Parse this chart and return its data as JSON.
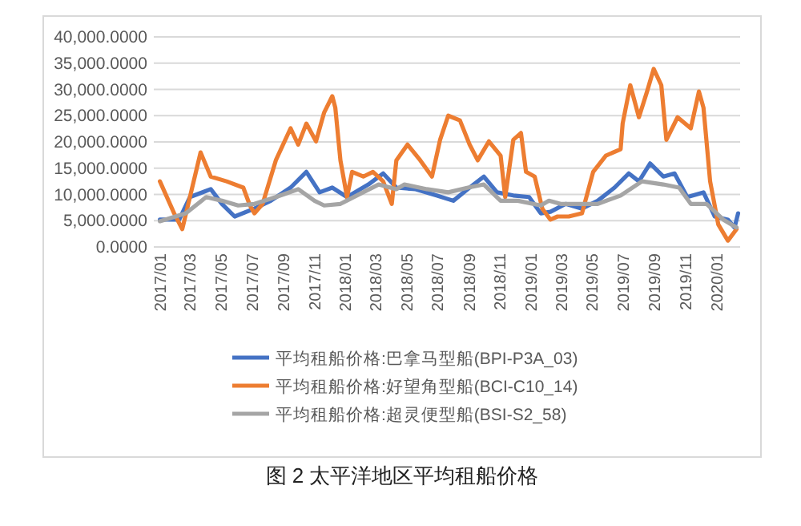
{
  "chart_data": {
    "type": "line",
    "title": "图 2 太平洋地区平均租船价格",
    "grid": "y",
    "legend": "bottom",
    "xlim": [
      "2016-12-20",
      "2020-02-16"
    ],
    "ylim": [
      0,
      40000
    ],
    "xticks": [
      {
        "value": "2017-01-01",
        "label": "2017/01"
      },
      {
        "value": "2017-03-01",
        "label": "2017/03"
      },
      {
        "value": "2017-05-01",
        "label": "2017/05"
      },
      {
        "value": "2017-07-01",
        "label": "2017/07"
      },
      {
        "value": "2017-09-01",
        "label": "2017/09"
      },
      {
        "value": "2017-11-01",
        "label": "2017/11"
      },
      {
        "value": "2018-01-01",
        "label": "2018/01"
      },
      {
        "value": "2018-03-01",
        "label": "2018/03"
      },
      {
        "value": "2018-05-01",
        "label": "2018/05"
      },
      {
        "value": "2018-07-01",
        "label": "2018/07"
      },
      {
        "value": "2018-09-01",
        "label": "2018/09"
      },
      {
        "value": "2018-11-01",
        "label": "2018/11"
      },
      {
        "value": "2019-01-01",
        "label": "2019/01"
      },
      {
        "value": "2019-03-01",
        "label": "2019/03"
      },
      {
        "value": "2019-05-01",
        "label": "2019/05"
      },
      {
        "value": "2019-07-01",
        "label": "2019/07"
      },
      {
        "value": "2019-09-01",
        "label": "2019/09"
      },
      {
        "value": "2019-11-01",
        "label": "2019/11"
      },
      {
        "value": "2020-01-01",
        "label": "2020/01"
      }
    ],
    "yticks": [
      {
        "value": 0,
        "label": "0.0000"
      },
      {
        "value": 5000,
        "label": "5,000.0000"
      },
      {
        "value": 10000,
        "label": "10,000.0000"
      },
      {
        "value": 15000,
        "label": "15,000.0000"
      },
      {
        "value": 20000,
        "label": "20,000.0000"
      },
      {
        "value": 25000,
        "label": "25,000.0000"
      },
      {
        "value": 30000,
        "label": "30,000.0000"
      },
      {
        "value": 35000,
        "label": "35,000.0000"
      },
      {
        "value": 40000,
        "label": "40,000.0000"
      }
    ],
    "series": [
      {
        "name": "平均租船价格:巴拿马型船(BPI-P3A_03)",
        "color": "#4472c4",
        "x": [
          "2017-01-01",
          "2017-02-08",
          "2017-03-01",
          "2017-04-11",
          "2017-05-03",
          "2017-05-28",
          "2017-07-06",
          "2017-08-07",
          "2017-09-15",
          "2017-10-16",
          "2017-11-11",
          "2017-12-06",
          "2018-01-04",
          "2018-02-15",
          "2018-03-16",
          "2018-04-11",
          "2018-05-19",
          "2018-06-29",
          "2018-08-01",
          "2018-09-02",
          "2018-09-30",
          "2018-10-26",
          "2018-11-27",
          "2018-12-28",
          "2019-01-20",
          "2019-02-08",
          "2019-03-10",
          "2019-04-11",
          "2019-05-12",
          "2019-06-14",
          "2019-07-12",
          "2019-08-01",
          "2019-08-23",
          "2019-09-18",
          "2019-10-10",
          "2019-11-04",
          "2019-12-06",
          "2019-12-28",
          "2020-01-23",
          "2020-02-05",
          "2020-02-12"
        ],
        "values": [
          5200,
          5200,
          9500,
          11000,
          8200,
          5800,
          7300,
          8800,
          11300,
          14300,
          10400,
          11300,
          9500,
          11900,
          14000,
          11300,
          11000,
          9800,
          8800,
          11300,
          13400,
          10400,
          9800,
          9500,
          6400,
          6700,
          8200,
          7300,
          8800,
          11300,
          14000,
          12500,
          15900,
          13400,
          14000,
          9500,
          10400,
          5800,
          5200,
          3700,
          6400
        ]
      },
      {
        "name": "平均租船价格:好望角型船(BCI-C10_14)",
        "color": "#ed7d31",
        "x": [
          "2017-01-01",
          "2017-01-29",
          "2017-02-14",
          "2017-03-22",
          "2017-04-11",
          "2017-05-12",
          "2017-06-14",
          "2017-06-27",
          "2017-07-06",
          "2017-07-22",
          "2017-08-17",
          "2017-09-15",
          "2017-09-30",
          "2017-10-16",
          "2017-11-04",
          "2017-11-20",
          "2017-12-06",
          "2017-12-12",
          "2017-12-22",
          "2018-01-04",
          "2018-01-14",
          "2018-02-05",
          "2018-02-24",
          "2018-03-16",
          "2018-04-02",
          "2018-04-11",
          "2018-05-03",
          "2018-05-28",
          "2018-06-20",
          "2018-07-06",
          "2018-07-22",
          "2018-08-14",
          "2018-09-02",
          "2018-09-18",
          "2018-10-10",
          "2018-11-02",
          "2018-11-11",
          "2018-11-27",
          "2018-12-12",
          "2018-12-22",
          "2019-01-08",
          "2019-01-23",
          "2019-02-08",
          "2019-02-22",
          "2019-03-16",
          "2019-04-11",
          "2019-05-03",
          "2019-05-28",
          "2019-06-26",
          "2019-06-30",
          "2019-07-15",
          "2019-08-01",
          "2019-08-17",
          "2019-08-30",
          "2019-09-14",
          "2019-09-24",
          "2019-10-16",
          "2019-11-11",
          "2019-11-27",
          "2019-12-06",
          "2019-12-19",
          "2020-01-04",
          "2020-01-23",
          "2020-02-09"
        ],
        "values": [
          12500,
          6400,
          3400,
          18000,
          13400,
          12500,
          11300,
          7900,
          6400,
          8200,
          16500,
          22600,
          19500,
          23500,
          20100,
          25600,
          28700,
          26500,
          16500,
          9500,
          14300,
          13400,
          14300,
          12500,
          8200,
          16500,
          19500,
          16500,
          13400,
          20400,
          25000,
          24100,
          19500,
          16500,
          20100,
          17400,
          9500,
          20400,
          21700,
          14300,
          13400,
          7300,
          5200,
          5800,
          5800,
          6400,
          14300,
          17400,
          18600,
          23500,
          30800,
          24700,
          29600,
          33900,
          30800,
          20400,
          24700,
          22600,
          29600,
          26500,
          12500,
          4300,
          1200,
          3400
        ]
      },
      {
        "name": "平均租船价格:超灵便型船(BSI-S2_58)",
        "color": "#a5a5a5",
        "x": [
          "2017-01-01",
          "2017-02-21",
          "2017-04-02",
          "2017-05-03",
          "2017-06-04",
          "2017-07-06",
          "2017-08-17",
          "2017-09-30",
          "2017-11-01",
          "2017-11-20",
          "2017-12-22",
          "2018-01-23",
          "2018-03-07",
          "2018-04-11",
          "2018-04-27",
          "2018-06-10",
          "2018-07-22",
          "2018-08-30",
          "2018-09-30",
          "2018-11-02",
          "2018-12-06",
          "2019-01-20",
          "2019-02-05",
          "2019-02-28",
          "2019-04-02",
          "2019-05-12",
          "2019-06-26",
          "2019-08-07",
          "2019-09-18",
          "2019-10-19",
          "2019-11-11",
          "2019-12-12",
          "2020-01-14",
          "2020-02-09"
        ],
        "values": [
          4900,
          6400,
          9500,
          8800,
          7900,
          8200,
          9500,
          11000,
          8800,
          7900,
          8200,
          9800,
          11900,
          11000,
          11900,
          11000,
          10400,
          11300,
          11900,
          8800,
          8800,
          7900,
          8800,
          8200,
          8200,
          8200,
          9800,
          12500,
          11900,
          11300,
          8200,
          8200,
          5200,
          3700
        ]
      }
    ]
  }
}
